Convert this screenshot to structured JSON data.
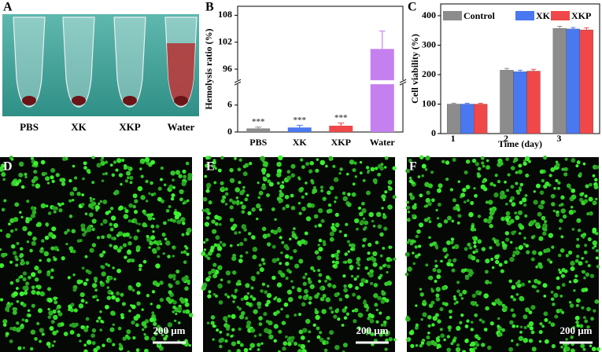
{
  "panel_labels": [
    "A",
    "B",
    "C",
    "D",
    "E",
    "F"
  ],
  "photo_labels": [
    "PBS",
    "XK",
    "XKP",
    "Water"
  ],
  "scale_bar_label": "200 μm",
  "chart_data": [
    {
      "type": "broken-bar",
      "y_label": "Hemolysis ratio (%)",
      "categories": [
        "PBS",
        "XK",
        "XKP",
        "Water"
      ],
      "values": [
        0.8,
        1.0,
        1.4,
        100.5
      ],
      "errors": [
        0.3,
        0.5,
        0.6,
        4
      ],
      "colors": [
        "#8c8c8c",
        "#4a78f0",
        "#f04848",
        "#c580f0"
      ],
      "annotations": [
        "***",
        "***",
        "***",
        null
      ],
      "ylim": [
        0,
        110
      ],
      "axis_break": [
        11,
        93
      ],
      "yticks": [
        0,
        6,
        96,
        102,
        108
      ]
    },
    {
      "type": "grouped-bar",
      "x_label": "Time (day)",
      "y_label": "Cell viability (%)",
      "categories": [
        "1",
        "2",
        "3"
      ],
      "series": [
        {
          "name": "Control",
          "color": "#8c8c8c",
          "values": [
            100,
            215,
            357
          ],
          "errors": [
            3,
            6,
            7
          ]
        },
        {
          "name": "XK",
          "color": "#4a78f0",
          "values": [
            100,
            210,
            355
          ],
          "errors": [
            3,
            5,
            5
          ]
        },
        {
          "name": "XKP",
          "color": "#f04848",
          "values": [
            100,
            212,
            352
          ],
          "errors": [
            3,
            6,
            7
          ]
        }
      ],
      "ylim": [
        0,
        440
      ],
      "yticks": [
        0,
        100,
        200,
        300,
        400
      ],
      "legend": "top"
    }
  ]
}
